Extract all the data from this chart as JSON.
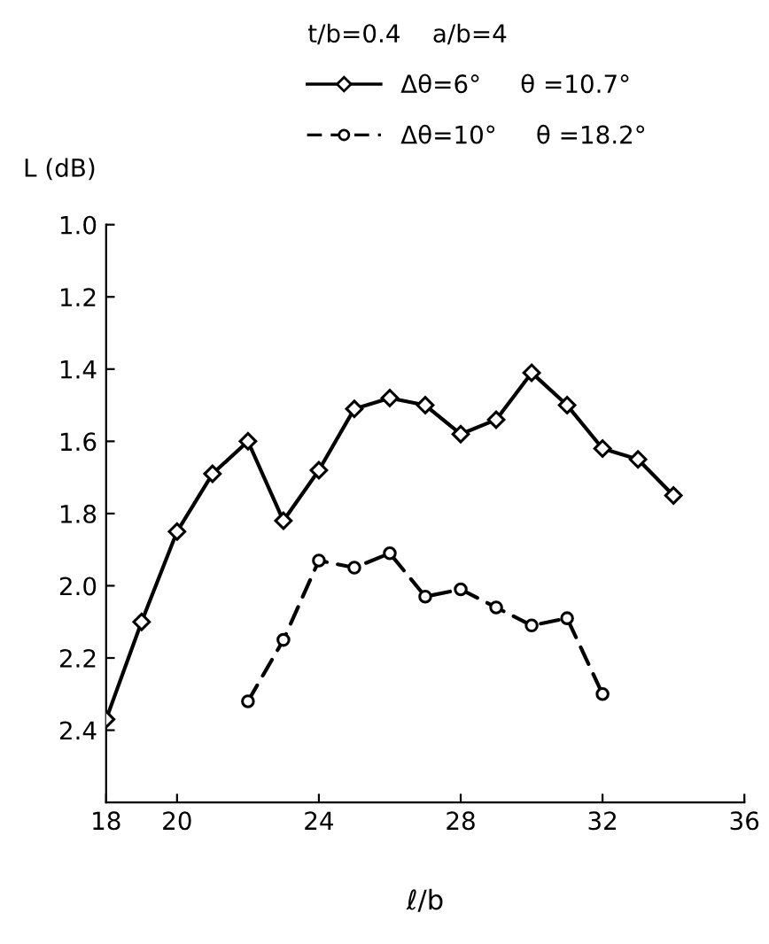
{
  "chart_data": {
    "type": "line",
    "annotations": [
      "t/b=0.4    a/b=4"
    ],
    "xlabel": "ℓ/b",
    "ylabel": "L (dB)",
    "series": [
      {
        "name": "Δθ=6°     θ =10.7°",
        "color": "#000000",
        "marker": "diamond",
        "line_style": "solid",
        "x": [
          18,
          19,
          20,
          21,
          22,
          23,
          24,
          25,
          26,
          27,
          28,
          29,
          30,
          31,
          32,
          33,
          34
        ],
        "values": [
          2.37,
          2.1,
          1.85,
          1.69,
          1.6,
          1.82,
          1.68,
          1.51,
          1.48,
          1.5,
          1.58,
          1.54,
          1.41,
          1.5,
          1.62,
          1.65,
          1.75
        ]
      },
      {
        "name": "Δθ=10°     θ =18.2°",
        "color": "#000000",
        "marker": "circle",
        "line_style": "dashed",
        "x": [
          22,
          23,
          24,
          25,
          26,
          27,
          28,
          29,
          30,
          31,
          32
        ],
        "values": [
          2.32,
          2.15,
          1.93,
          1.95,
          1.91,
          2.03,
          2.01,
          2.06,
          2.11,
          2.09,
          2.3
        ]
      }
    ],
    "xlim": [
      18,
      36
    ],
    "xticks": [
      18,
      20,
      24,
      28,
      32,
      36
    ],
    "ylim": [
      2.6,
      1.0
    ],
    "yticks": [
      {
        "value": 1.0,
        "label": "1.0"
      },
      1.2,
      1.4,
      1.6,
      1.8,
      {
        "value": 2.0,
        "label": "2.0"
      },
      2.2,
      2.4
    ],
    "grid": false,
    "legend": "top"
  }
}
